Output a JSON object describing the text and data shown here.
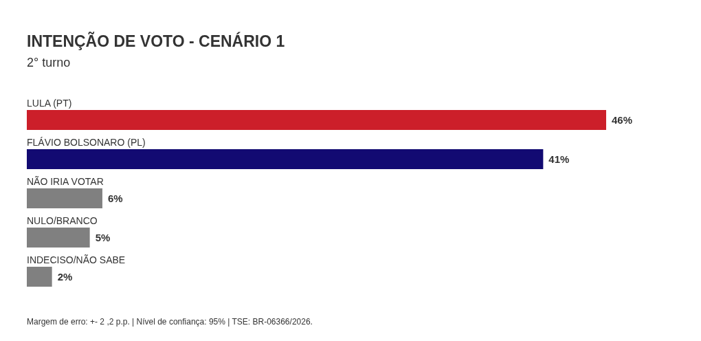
{
  "chart_data": {
    "type": "bar",
    "orientation": "horizontal",
    "title": "INTENÇÃO DE VOTO - CENÁRIO 1",
    "subtitle": "2° turno",
    "categories": [
      "LULA (PT)",
      "FLÁVIO BOLSONARO (PL)",
      "NÃO IRIA VOTAR",
      "NULO/BRANCO",
      "INDECISO/NÃO SABE"
    ],
    "values": [
      46,
      41,
      6,
      5,
      2
    ],
    "colors": [
      "#cc1f2a",
      "#120a72",
      "#808080",
      "#808080",
      "#808080"
    ],
    "value_labels": [
      "46%",
      "41%",
      "6%",
      "5%",
      "2%"
    ],
    "annotations": [
      "Margem de erro: +- 2 ,2 p.p. | Nível de confiança: 95% | TSE: BR-06366/2026."
    ]
  }
}
